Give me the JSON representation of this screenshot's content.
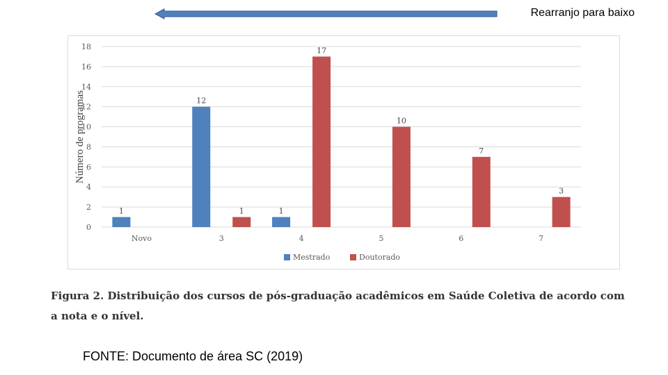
{
  "header": {
    "label": "Rearranjo para baixo"
  },
  "colors": {
    "mestrado": "#4f81bd",
    "doutorado": "#c0504d",
    "arrow": "#4f81bd",
    "grid": "#d9d9d9"
  },
  "chart_data": {
    "type": "bar",
    "title": "",
    "xlabel": "",
    "ylabel": "Número de programas",
    "ylim": [
      0,
      18
    ],
    "yticks": [
      0,
      2,
      4,
      6,
      8,
      10,
      12,
      14,
      16,
      18
    ],
    "categories": [
      "Novo",
      "3",
      "4",
      "5",
      "6",
      "7"
    ],
    "series": [
      {
        "name": "Mestrado",
        "values": [
          1,
          12,
          1,
          null,
          null,
          null
        ]
      },
      {
        "name": "Doutorado",
        "values": [
          null,
          1,
          17,
          10,
          7,
          3
        ]
      }
    ],
    "grid": true,
    "legend_position": "bottom-center"
  },
  "caption": {
    "line1": "Figura 2. Distribuição dos cursos de pós-graduação acadêmicos em Saúde Coletiva de acordo com",
    "line2": "a nota e o nível."
  },
  "source": {
    "text": "FONTE: Documento de área SC (2019)"
  }
}
